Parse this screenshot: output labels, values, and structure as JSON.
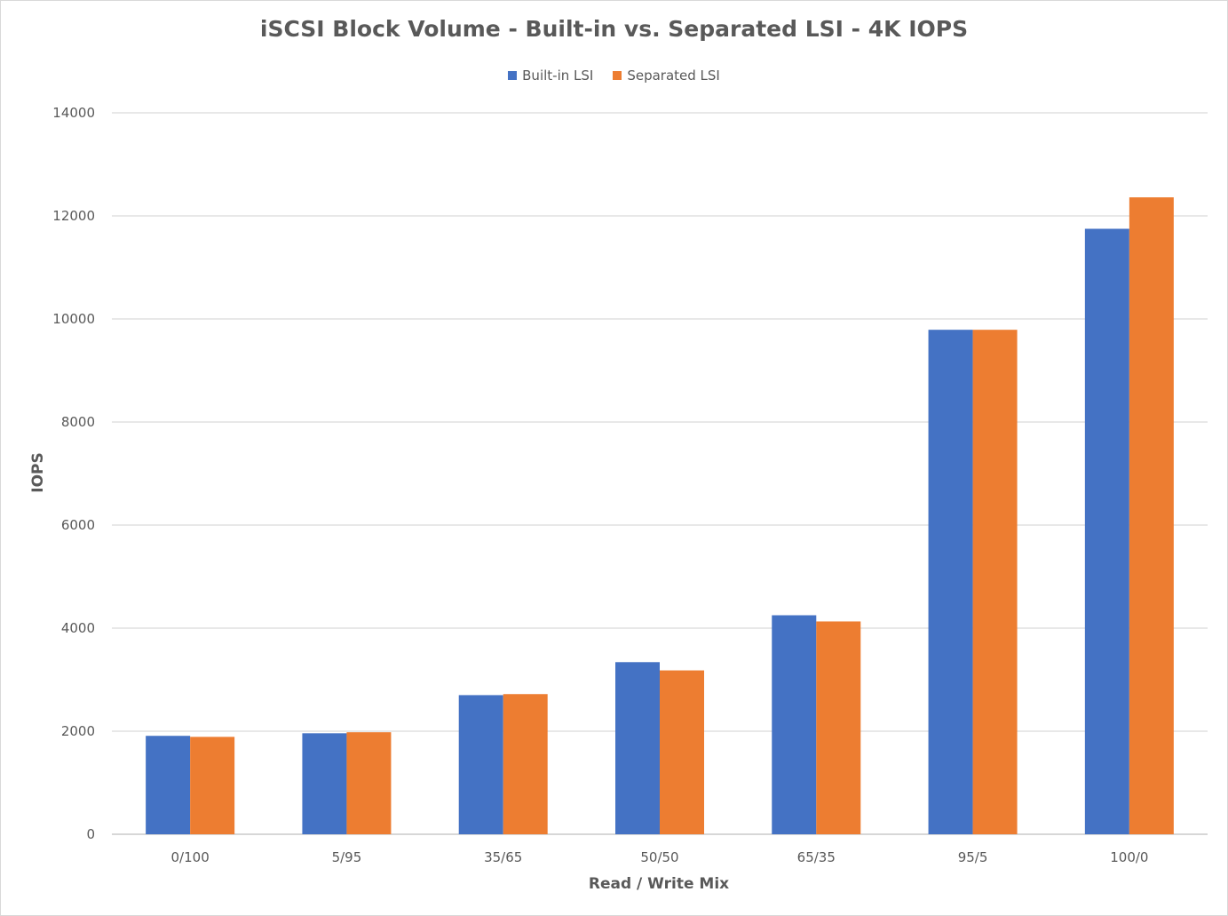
{
  "chart_data": {
    "type": "bar",
    "title": "iSCSI Block Volume - Built-in vs. Separated LSI - 4K IOPS",
    "xlabel": "Read / Write Mix",
    "ylabel": "IOPS",
    "ylim": [
      0,
      14000
    ],
    "yticks": [
      0,
      2000,
      4000,
      6000,
      8000,
      10000,
      12000,
      14000
    ],
    "grid": true,
    "legend_position": "top-center",
    "categories": [
      "0/100",
      "5/95",
      "35/65",
      "50/50",
      "65/35",
      "95/5",
      "100/0"
    ],
    "series": [
      {
        "name": "Built-in LSI",
        "color": "#4472c4",
        "values": [
          1910,
          1960,
          2700,
          3340,
          4250,
          9790,
          11750
        ]
      },
      {
        "name": "Separated LSI",
        "color": "#ed7d31",
        "values": [
          1890,
          1980,
          2720,
          3180,
          4130,
          9790,
          12360
        ]
      }
    ]
  }
}
